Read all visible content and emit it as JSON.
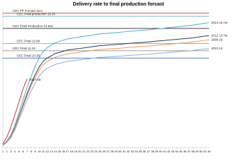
{
  "chart_data": {
    "type": "line",
    "title": "Delivery rate to final production forcast",
    "x": [
      1,
      2,
      3,
      4,
      5,
      6,
      7,
      8,
      9,
      10,
      11,
      12,
      13,
      14,
      15,
      16,
      17,
      18,
      19,
      20,
      21,
      22,
      23,
      24,
      25,
      26,
      27,
      28,
      29,
      30,
      31,
      32,
      33,
      34,
      35,
      36,
      37,
      38,
      39,
      40,
      41,
      42,
      43,
      44,
      45,
      46,
      47,
      48,
      49,
      50,
      51,
      52
    ],
    "xlim": [
      1,
      52
    ],
    "ylim": [
      0,
      16
    ],
    "series": [
      {
        "name": "2014 15 Ho",
        "color": "#4bacc6",
        "values": [
          0.29,
          0.73,
          1.45,
          2.61,
          4.06,
          5.51,
          6.96,
          8.27,
          9.43,
          10.44,
          11.17,
          11.6,
          11.89,
          12.18,
          12.33,
          12.47,
          12.62,
          12.69,
          12.76,
          12.83,
          12.91,
          12.98,
          13.05,
          13.12,
          13.2,
          13.22,
          13.27,
          13.31,
          13.34,
          13.38,
          13.43,
          13.49,
          13.51,
          13.56,
          13.6,
          13.63,
          13.67,
          13.72,
          13.78,
          13.82,
          13.86,
          13.92,
          13.96,
          14.01,
          14.07,
          14.11,
          14.15,
          14.21,
          14.28,
          14.36,
          14.43,
          14.5
        ]
      },
      {
        "name": "2012 13 Ho",
        "color": "#1f3864",
        "values": [
          0.26,
          0.65,
          1.3,
          2.34,
          3.64,
          4.94,
          6.24,
          7.41,
          8.45,
          9.36,
          10.01,
          10.4,
          10.66,
          10.92,
          11.05,
          11.18,
          11.31,
          11.38,
          11.44,
          11.51,
          11.57,
          11.64,
          11.7,
          11.77,
          11.83,
          11.86,
          11.9,
          11.93,
          11.96,
          12,
          12.04,
          12.09,
          12.12,
          12.16,
          12.19,
          12.22,
          12.26,
          12.3,
          12.35,
          12.39,
          12.43,
          12.48,
          12.52,
          12.56,
          12.61,
          12.65,
          12.69,
          12.74,
          12.81,
          12.87,
          12.94,
          13
        ]
      },
      {
        "name": "2009 10",
        "color": "#f79646",
        "values": [
          0.25,
          0.63,
          1.25,
          2.25,
          3.5,
          4.75,
          6,
          7.13,
          8.13,
          9,
          9.63,
          10,
          10.25,
          10.5,
          10.63,
          10.75,
          10.88,
          10.94,
          11,
          11.06,
          11.13,
          11.19,
          11.25,
          11.31,
          11.38,
          11.4,
          11.44,
          11.48,
          11.5,
          11.54,
          11.58,
          11.63,
          11.65,
          11.69,
          11.73,
          11.75,
          11.79,
          11.83,
          11.88,
          11.91,
          11.95,
          12,
          12.04,
          12.08,
          12.13,
          12.16,
          12.2,
          12.25,
          12.31,
          12.38,
          12.44,
          12.5
        ]
      },
      {
        "name": "2013 14",
        "color": "#8ea9db",
        "values": [
          0.23,
          0.58,
          1.15,
          2.07,
          3.22,
          4.37,
          5.52,
          6.56,
          7.48,
          8.28,
          8.86,
          9.2,
          9.43,
          9.66,
          9.78,
          9.89,
          10.01,
          10.06,
          10.12,
          10.18,
          10.24,
          10.29,
          10.35,
          10.41,
          10.47,
          10.49,
          10.52,
          10.56,
          10.58,
          10.61,
          10.65,
          10.7,
          10.72,
          10.75,
          10.79,
          10.81,
          10.84,
          10.88,
          10.93,
          10.96,
          10.99,
          11.04,
          11.07,
          11.11,
          11.16,
          11.19,
          11.22,
          11.27,
          11.33,
          11.39,
          11.44,
          11.5
        ]
      },
      {
        "name": "2017-18",
        "color": "#e0301e",
        "values": [
          0.4,
          1.2,
          2.4,
          3.8,
          5.3,
          6.8,
          8.0,
          null,
          null,
          null,
          null,
          null,
          null,
          null,
          null,
          null,
          null,
          null,
          null,
          null,
          null,
          null,
          null,
          null,
          null,
          null,
          null,
          null,
          null,
          null,
          null,
          null,
          null,
          null,
          null,
          null,
          null,
          null,
          null,
          null,
          null,
          null,
          null,
          null,
          null,
          null,
          null,
          null,
          null,
          null,
          null,
          null
        ]
      }
    ],
    "reference_lines": [
      {
        "label": "CEC PF Forcast 15.6",
        "value": 15.6,
        "color": "#e0301e"
      },
      {
        "label": "CEC Final production 15.25",
        "value": 15.25,
        "color": "#4bacc6"
      },
      {
        "label": "CEC Final Production 13.831",
        "value": 13.831,
        "color": "#000000"
      },
      {
        "label": "CEC Final 12.09",
        "value": 12.09,
        "color": "#70ad47"
      },
      {
        "label": "CEC Final 11.24",
        "value": 11.24,
        "color": "#7f7f7f"
      },
      {
        "label": "CEC Final 10.38",
        "value": 10.38,
        "color": "#4472c4"
      }
    ]
  }
}
